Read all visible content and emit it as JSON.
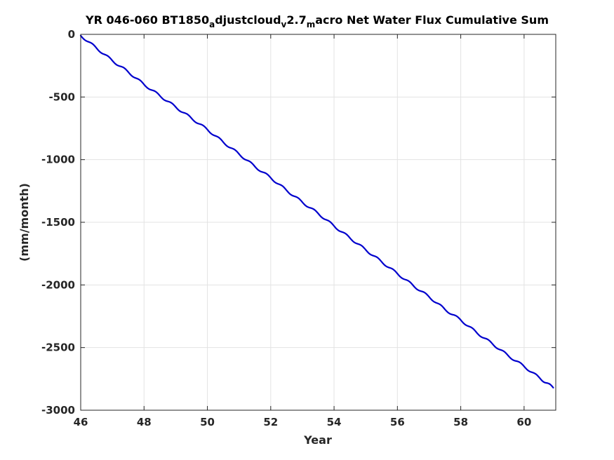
{
  "chart_data": {
    "type": "line",
    "title": {
      "segments": [
        {
          "text": "YR 046-060 BT1850",
          "sub": false
        },
        {
          "text": "a",
          "sub": true
        },
        {
          "text": "djustcloud",
          "sub": false
        },
        {
          "text": "v",
          "sub": true
        },
        {
          "text": "2.7",
          "sub": false
        },
        {
          "text": "m",
          "sub": true
        },
        {
          "text": "acro Net Water Flux Cumulative Sum",
          "sub": false
        }
      ]
    },
    "xlabel": "Year",
    "ylabel": "(mm/month)",
    "xlim": [
      46,
      61
    ],
    "ylim": [
      -3000,
      0
    ],
    "xticks": [
      46,
      48,
      50,
      52,
      54,
      56,
      58,
      60
    ],
    "xtick_labels": [
      "46",
      "48",
      "50",
      "52",
      "54",
      "56",
      "58",
      "60"
    ],
    "yticks": [
      0,
      -500,
      -1000,
      -1500,
      -2000,
      -2500,
      -3000
    ],
    "ytick_labels": [
      "0",
      "-500",
      "-1000",
      "-1500",
      "-2000",
      "-2500",
      "-3000"
    ],
    "grid": true,
    "series": [
      {
        "color": "#0000cd",
        "x": [
          46.0,
          46.5,
          47.0,
          47.5,
          48.0,
          48.5,
          49.0,
          49.5,
          50.0,
          50.5,
          51.0,
          51.5,
          52.0,
          52.5,
          53.0,
          53.5,
          54.0,
          54.5,
          55.0,
          55.5,
          56.0,
          56.5,
          57.0,
          57.5,
          58.0,
          58.5,
          59.0,
          59.5,
          60.0,
          60.5,
          60.92
        ],
        "y": [
          -10,
          -110,
          -210,
          -300,
          -400,
          -490,
          -580,
          -670,
          -760,
          -860,
          -955,
          -1055,
          -1145,
          -1245,
          -1340,
          -1430,
          -1530,
          -1625,
          -1720,
          -1815,
          -1910,
          -2005,
          -2095,
          -2195,
          -2280,
          -2380,
          -2470,
          -2565,
          -2650,
          -2745,
          -2820
        ]
      }
    ]
  }
}
